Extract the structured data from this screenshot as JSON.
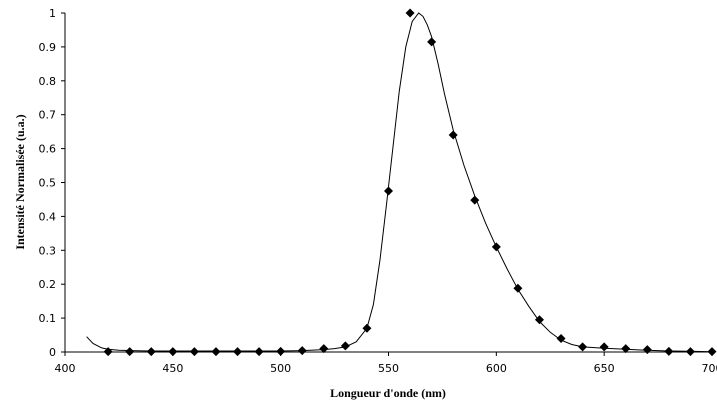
{
  "chart_data": {
    "type": "scatter",
    "title": "",
    "xlabel": "Longueur d'onde (nm)",
    "ylabel": "Intensité Normalisée (u.a.)",
    "xlim": [
      400,
      700
    ],
    "ylim": [
      0,
      1
    ],
    "xticks": [
      "400",
      "450",
      "500",
      "550",
      "600",
      "650",
      "700"
    ],
    "yticks": [
      "0",
      "0.1",
      "0.2",
      "0.3",
      "0.4",
      "0.5",
      "0.6",
      "0.7",
      "0.8",
      "0.9",
      "1"
    ],
    "grid": false,
    "legend": "none",
    "series": [
      {
        "kind": "markers",
        "marker": "diamond",
        "color": "#000000",
        "x": [
          420,
          430,
          440,
          450,
          460,
          470,
          480,
          490,
          500,
          510,
          520,
          530,
          540,
          550,
          560,
          570,
          580,
          590,
          600,
          610,
          620,
          630,
          640,
          650,
          660,
          670,
          680,
          690,
          700
        ],
        "y": [
          0.001,
          0.001,
          0.001,
          0.001,
          0.001,
          0.001,
          0.001,
          0.001,
          0.002,
          0.004,
          0.01,
          0.018,
          0.07,
          0.475,
          1.0,
          0.915,
          0.64,
          0.448,
          0.31,
          0.188,
          0.095,
          0.04,
          0.015,
          0.015,
          0.01,
          0.007,
          0.002,
          0.001,
          0.001
        ]
      },
      {
        "kind": "line",
        "color": "#000000",
        "x": [
          410,
          413,
          417,
          420,
          425,
          430,
          440,
          450,
          460,
          470,
          480,
          490,
          500,
          510,
          520,
          525,
          530,
          535,
          540,
          543,
          546,
          549,
          552,
          555,
          558,
          561,
          564,
          566,
          568,
          570,
          573,
          576,
          580,
          585,
          590,
          595,
          600,
          605,
          610,
          615,
          620,
          625,
          630,
          635,
          640,
          650,
          660,
          670,
          680,
          690,
          700
        ],
        "y": [
          0.045,
          0.025,
          0.012,
          0.008,
          0.005,
          0.004,
          0.003,
          0.003,
          0.003,
          0.003,
          0.003,
          0.003,
          0.003,
          0.004,
          0.007,
          0.01,
          0.015,
          0.03,
          0.07,
          0.14,
          0.27,
          0.43,
          0.6,
          0.77,
          0.9,
          0.975,
          1.0,
          0.99,
          0.965,
          0.93,
          0.85,
          0.76,
          0.655,
          0.55,
          0.46,
          0.38,
          0.31,
          0.245,
          0.185,
          0.135,
          0.09,
          0.058,
          0.035,
          0.022,
          0.015,
          0.011,
          0.008,
          0.005,
          0.003,
          0.002,
          0.001
        ]
      }
    ]
  }
}
